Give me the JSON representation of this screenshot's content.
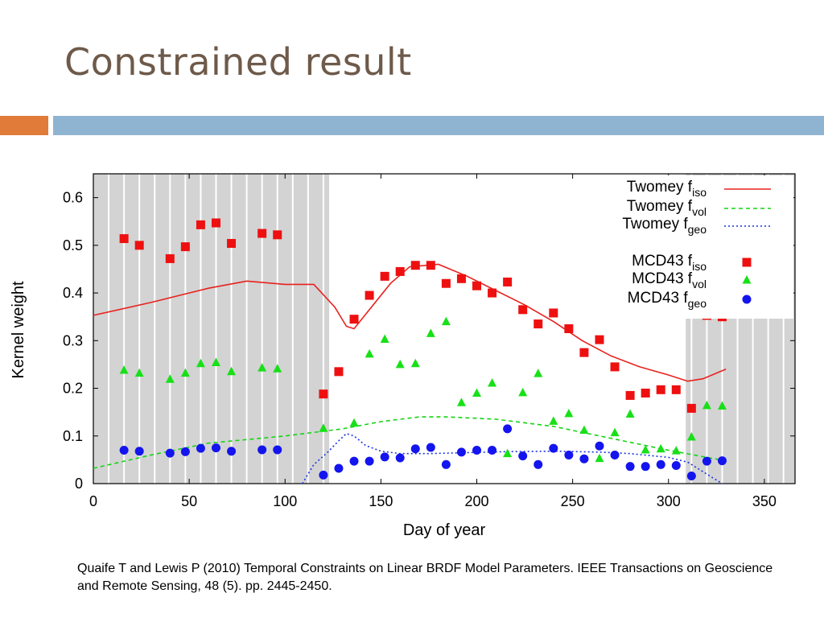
{
  "slide": {
    "title": "Constrained result",
    "citation": "Quaife T and Lewis P (2010) Temporal Constraints on Linear BRDF Model Parameters. IEEE Transactions on Geoscience and Remote Sensing, 48 (5). pp. 2445-2450."
  },
  "colors": {
    "accent_orange": "#e07b39",
    "accent_blue": "#8fb4d2",
    "title": "#6e5a4a",
    "shade": "#d3d3d3"
  },
  "chart_data": {
    "type": "scatter",
    "title": "",
    "xlabel": "Day of year",
    "ylabel": "Kernel weight",
    "xlim": [
      0,
      366
    ],
    "ylim": [
      0,
      0.65
    ],
    "x_ticks": [
      0,
      50,
      100,
      150,
      200,
      250,
      300,
      350
    ],
    "y_ticks": [
      0,
      0.1,
      0.2,
      0.3,
      0.4,
      0.5,
      0.6
    ],
    "x_tick_labels": [
      "0",
      "50",
      "100",
      "150",
      "200",
      "250",
      "300",
      "350"
    ],
    "y_tick_labels": [
      "0",
      "0.1",
      "0.2",
      "0.3",
      "0.4",
      "0.5",
      "0.6"
    ],
    "grid": false,
    "legend_position": "top-right",
    "shaded_regions": [
      [
        0,
        123
      ],
      [
        309,
        366
      ]
    ],
    "lines": [
      {
        "label": "Twomey",
        "sub": "iso",
        "color": "#e8211d",
        "dash": "",
        "x": [
          0,
          30,
          60,
          80,
          100,
          115,
          126,
          132,
          136,
          145,
          155,
          165,
          180,
          195,
          210,
          225,
          240,
          255,
          270,
          285,
          300,
          310,
          318,
          330
        ],
        "y": [
          0.353,
          0.38,
          0.41,
          0.425,
          0.418,
          0.418,
          0.37,
          0.33,
          0.325,
          0.37,
          0.42,
          0.455,
          0.46,
          0.435,
          0.405,
          0.375,
          0.34,
          0.3,
          0.268,
          0.245,
          0.228,
          0.215,
          0.22,
          0.24
        ]
      },
      {
        "label": "Twomey",
        "sub": "vol",
        "color": "#14d414",
        "dash": "5,4",
        "x": [
          0,
          30,
          60,
          100,
          130,
          150,
          170,
          185,
          210,
          240,
          270,
          300,
          320,
          330
        ],
        "y": [
          0.032,
          0.06,
          0.085,
          0.1,
          0.115,
          0.13,
          0.14,
          0.14,
          0.135,
          0.12,
          0.095,
          0.07,
          0.055,
          0.048
        ]
      },
      {
        "label": "Twomey",
        "sub": "geo",
        "color": "#1830e8",
        "dash": "2,3",
        "x": [
          109,
          115,
          122,
          128,
          132,
          136,
          142,
          150,
          160,
          175,
          195,
          215,
          240,
          265,
          280,
          300,
          310,
          318,
          328
        ],
        "y": [
          0.0,
          0.04,
          0.065,
          0.09,
          0.105,
          0.1,
          0.08,
          0.068,
          0.063,
          0.063,
          0.065,
          0.067,
          0.068,
          0.066,
          0.063,
          0.055,
          0.045,
          0.025,
          0.0
        ]
      }
    ],
    "series": [
      {
        "label": "MCD43",
        "sub": "iso",
        "color": "#ee1010",
        "marker": "square",
        "points": [
          [
            16,
            0.514
          ],
          [
            24,
            0.5
          ],
          [
            40,
            0.472
          ],
          [
            48,
            0.497
          ],
          [
            56,
            0.543
          ],
          [
            64,
            0.547
          ],
          [
            72,
            0.504
          ],
          [
            88,
            0.525
          ],
          [
            96,
            0.522
          ],
          [
            120,
            0.188
          ],
          [
            128,
            0.235
          ],
          [
            136,
            0.345
          ],
          [
            144,
            0.395
          ],
          [
            152,
            0.435
          ],
          [
            160,
            0.445
          ],
          [
            168,
            0.458
          ],
          [
            176,
            0.458
          ],
          [
            184,
            0.42
          ],
          [
            192,
            0.43
          ],
          [
            200,
            0.415
          ],
          [
            208,
            0.4
          ],
          [
            216,
            0.423
          ],
          [
            224,
            0.365
          ],
          [
            232,
            0.335
          ],
          [
            240,
            0.358
          ],
          [
            248,
            0.325
          ],
          [
            256,
            0.275
          ],
          [
            264,
            0.302
          ],
          [
            272,
            0.245
          ],
          [
            280,
            0.185
          ],
          [
            288,
            0.19
          ],
          [
            296,
            0.197
          ],
          [
            304,
            0.197
          ],
          [
            312,
            0.158
          ],
          [
            320,
            0.353
          ],
          [
            328,
            0.35
          ]
        ]
      },
      {
        "label": "MCD43",
        "sub": "vol",
        "color": "#18e018",
        "marker": "triangle",
        "points": [
          [
            16,
            0.238
          ],
          [
            24,
            0.232
          ],
          [
            40,
            0.219
          ],
          [
            48,
            0.232
          ],
          [
            56,
            0.252
          ],
          [
            64,
            0.254
          ],
          [
            72,
            0.235
          ],
          [
            88,
            0.243
          ],
          [
            96,
            0.241
          ],
          [
            120,
            0.116
          ],
          [
            136,
            0.127
          ],
          [
            144,
            0.272
          ],
          [
            152,
            0.303
          ],
          [
            160,
            0.25
          ],
          [
            168,
            0.252
          ],
          [
            176,
            0.315
          ],
          [
            184,
            0.34
          ],
          [
            192,
            0.17
          ],
          [
            200,
            0.19
          ],
          [
            208,
            0.211
          ],
          [
            216,
            0.063
          ],
          [
            224,
            0.191
          ],
          [
            232,
            0.231
          ],
          [
            240,
            0.131
          ],
          [
            248,
            0.147
          ],
          [
            256,
            0.112
          ],
          [
            264,
            0.053
          ],
          [
            272,
            0.107
          ],
          [
            280,
            0.146
          ],
          [
            288,
            0.071
          ],
          [
            296,
            0.073
          ],
          [
            304,
            0.069
          ],
          [
            312,
            0.098
          ],
          [
            320,
            0.164
          ],
          [
            328,
            0.163
          ]
        ]
      },
      {
        "label": "MCD43",
        "sub": "geo",
        "color": "#1414ee",
        "marker": "circle",
        "points": [
          [
            16,
            0.07
          ],
          [
            24,
            0.068
          ],
          [
            40,
            0.064
          ],
          [
            48,
            0.067
          ],
          [
            56,
            0.074
          ],
          [
            64,
            0.075
          ],
          [
            72,
            0.068
          ],
          [
            88,
            0.071
          ],
          [
            96,
            0.071
          ],
          [
            120,
            0.018
          ],
          [
            128,
            0.032
          ],
          [
            136,
            0.047
          ],
          [
            144,
            0.047
          ],
          [
            152,
            0.056
          ],
          [
            160,
            0.054
          ],
          [
            168,
            0.073
          ],
          [
            176,
            0.076
          ],
          [
            184,
            0.04
          ],
          [
            192,
            0.066
          ],
          [
            200,
            0.07
          ],
          [
            208,
            0.07
          ],
          [
            216,
            0.115
          ],
          [
            224,
            0.058
          ],
          [
            232,
            0.04
          ],
          [
            240,
            0.074
          ],
          [
            248,
            0.06
          ],
          [
            256,
            0.052
          ],
          [
            264,
            0.079
          ],
          [
            272,
            0.06
          ],
          [
            280,
            0.036
          ],
          [
            288,
            0.036
          ],
          [
            296,
            0.04
          ],
          [
            304,
            0.038
          ],
          [
            312,
            0.016
          ],
          [
            320,
            0.047
          ],
          [
            328,
            0.048
          ]
        ]
      }
    ]
  }
}
